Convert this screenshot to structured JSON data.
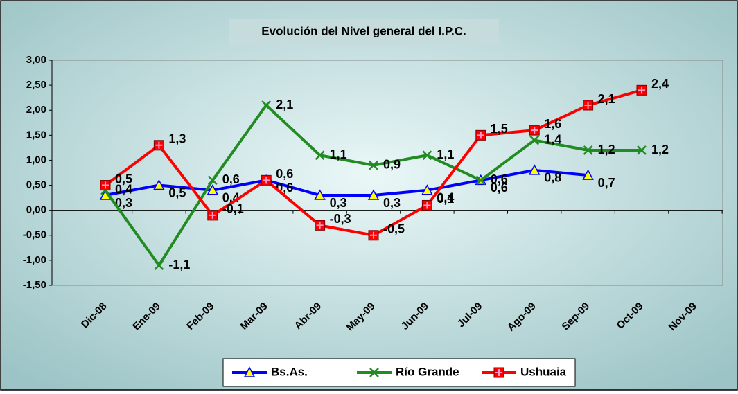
{
  "chart_data": {
    "type": "line",
    "title": "Evolución del Nivel general del I.P.C.",
    "categories": [
      "Dic-08",
      "Ene-09",
      "Feb-09",
      "Mar-09",
      "Abr-09",
      "May-09",
      "Jun-09",
      "Jul-09",
      "Ago-09",
      "Sep-09",
      "Oct-09",
      "Nov-09"
    ],
    "ylim": [
      -1.5,
      3.0
    ],
    "yticks": [
      {
        "value": -1.5,
        "label": "-1,50"
      },
      {
        "value": -1.0,
        "label": "-1,00"
      },
      {
        "value": -0.5,
        "label": "-0,50"
      },
      {
        "value": 0,
        "label": "0,00"
      },
      {
        "value": 0.5,
        "label": "0,50"
      },
      {
        "value": 1.0,
        "label": "1,00"
      },
      {
        "value": 1.5,
        "label": "1,50"
      },
      {
        "value": 2.0,
        "label": "2,00"
      },
      {
        "value": 2.5,
        "label": "2,50"
      },
      {
        "value": 3.0,
        "label": "3,00"
      }
    ],
    "series": [
      {
        "name": "Bs.As.",
        "color": "#0000ff",
        "marker": "triangle",
        "values": [
          0.3,
          0.5,
          0.4,
          0.6,
          0.3,
          0.3,
          0.4,
          0.6,
          0.8,
          0.7,
          null,
          null
        ],
        "value_labels": [
          "0,3",
          "0,5",
          "0,4",
          "0,6",
          "0,3",
          "0,3",
          "0,4",
          "0,6",
          "0,8",
          "0,7",
          null,
          null
        ]
      },
      {
        "name": "Río Grande",
        "color": "#228b22",
        "marker": "x",
        "values": [
          0.4,
          -1.1,
          0.6,
          2.1,
          1.1,
          0.9,
          1.1,
          0.6,
          1.4,
          1.2,
          1.2,
          null
        ],
        "value_labels": [
          "0,4",
          "-1,1",
          "0,6",
          "2,1",
          "1,1",
          "0,9",
          "1,1",
          "0,6",
          "1,4",
          "1,2",
          "1,2",
          null
        ]
      },
      {
        "name": "Ushuaia",
        "color": "#ff0000",
        "marker": "square",
        "values": [
          0.5,
          1.3,
          -0.1,
          0.6,
          -0.3,
          -0.5,
          0.1,
          1.5,
          1.6,
          2.1,
          2.4,
          null
        ],
        "value_labels": [
          "0,5",
          "1,3",
          "-0,1",
          "0,6",
          "-0,3",
          "-0,5",
          "0,1",
          "1,5",
          "1,6",
          "2,1",
          "2,4",
          null
        ]
      }
    ]
  }
}
